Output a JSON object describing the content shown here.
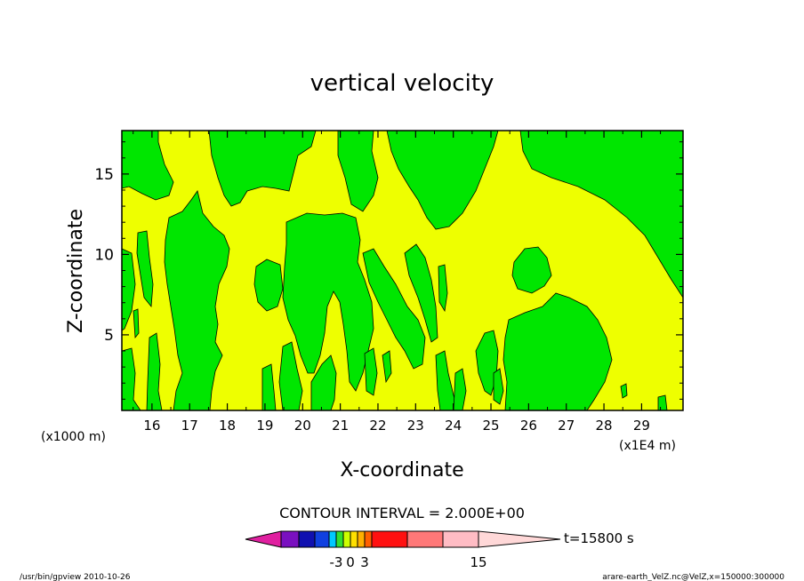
{
  "chart_data": {
    "type": "heatmap",
    "title": "vertical velocity",
    "xlabel": "X-coordinate",
    "ylabel": "Z-coordinate",
    "x_axis_unit": "(x1000 m)",
    "x_axis_multiplier": "(x1E4 m)",
    "x_ticks": [
      "16",
      "17",
      "18",
      "19",
      "20",
      "21",
      "22",
      "23",
      "24",
      "25",
      "26",
      "27",
      "28",
      "29"
    ],
    "y_ticks": [
      "5",
      "10",
      "15"
    ],
    "xlim": [
      15.2,
      30.1
    ],
    "ylim": [
      0.3,
      17.7
    ],
    "contour_interval_text": "CONTOUR INTERVAL = 2.000E+00",
    "time_label": "t=15800 s",
    "colorbar_tick_labels": [
      "-3",
      "0",
      "3",
      "15"
    ],
    "colorbar_colors": [
      "#e020a0",
      "#7a10c0",
      "#1010b0",
      "#1040e0",
      "#00c8ff",
      "#30e030",
      "#ccff00",
      "#ffe000",
      "#ffb000",
      "#ff6000",
      "#ff1010",
      "#ff7878",
      "#ffbcc4",
      "#ffd8d8"
    ],
    "field_colors": {
      "background": "#eeff00",
      "downdraft": "#00e600",
      "contour_line": "#000000"
    },
    "green_regions_description_free": true,
    "footer_left": "/usr/bin/gpview   2010-10-26",
    "footer_right": "arare-earth_VelZ.nc@VelZ,x=150000:300000"
  }
}
